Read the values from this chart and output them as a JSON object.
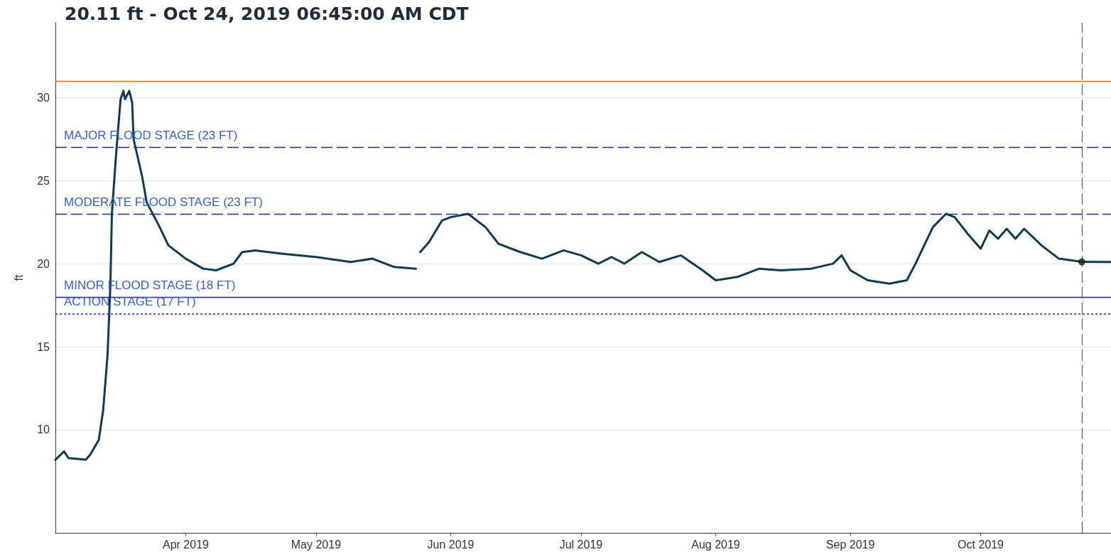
{
  "chart_data": {
    "type": "line",
    "title": "20.11 ft - Oct 24, 2019 06:45:00 AM CDT",
    "ylabel": "ft",
    "xlim": [
      "2019-03-02",
      "2019-10-31"
    ],
    "xticks": [
      {
        "value": "2019-04-01",
        "label": "Apr 2019"
      },
      {
        "value": "2019-05-01",
        "label": "May 2019"
      },
      {
        "value": "2019-06-01",
        "label": "Jun 2019"
      },
      {
        "value": "2019-07-01",
        "label": "Jul 2019"
      },
      {
        "value": "2019-08-01",
        "label": "Aug 2019"
      },
      {
        "value": "2019-09-01",
        "label": "Sep 2019"
      },
      {
        "value": "2019-10-01",
        "label": "Oct 2019"
      }
    ],
    "ylim": [
      3.8,
      34.5
    ],
    "yticks": [
      10,
      15,
      20,
      25,
      30
    ],
    "grid": "y",
    "marker": "none",
    "line_style": "solid",
    "series": [
      {
        "color": "#0d3d56",
        "x": [
          "2019-03-02",
          "2019-03-04",
          "2019-03-05",
          "2019-03-09",
          "2019-03-10",
          "2019-03-12",
          "2019-03-13",
          "2019-03-14",
          "2019-03-14T16:00",
          "2019-03-15",
          "2019-03-16",
          "2019-03-17",
          "2019-03-17T16:00",
          "2019-03-18",
          "2019-03-19",
          "2019-03-19T16:00",
          "2019-03-20",
          "2019-03-22",
          "2019-03-23",
          "2019-03-26",
          "2019-03-28",
          "2019-04-01",
          "2019-04-05",
          "2019-04-08",
          "2019-04-12",
          "2019-04-14",
          "2019-04-17",
          "2019-04-23",
          "2019-05-01",
          "2019-05-09",
          "2019-05-14",
          "2019-05-19",
          "2019-05-24",
          "2019-05-24T12:00",
          "2019-05-25",
          "2019-05-27",
          "2019-05-30",
          "2019-06-01",
          "2019-06-05",
          "2019-06-09",
          "2019-06-12",
          "2019-06-17",
          "2019-06-22",
          "2019-06-27",
          "2019-07-01",
          "2019-07-05",
          "2019-07-08",
          "2019-07-11",
          "2019-07-15",
          "2019-07-19",
          "2019-07-24",
          "2019-07-29",
          "2019-08-01",
          "2019-08-06",
          "2019-08-11",
          "2019-08-16",
          "2019-08-23",
          "2019-08-28",
          "2019-08-30",
          "2019-09-01",
          "2019-09-05",
          "2019-09-10",
          "2019-09-14",
          "2019-09-16",
          "2019-09-20",
          "2019-09-23",
          "2019-09-25",
          "2019-09-28",
          "2019-10-01",
          "2019-10-03",
          "2019-10-05",
          "2019-10-07",
          "2019-10-09",
          "2019-10-11",
          "2019-10-15",
          "2019-10-19",
          "2019-10-24T06:45",
          "2019-10-31"
        ],
        "values": [
          8.2,
          8.7,
          8.3,
          8.2,
          8.5,
          9.4,
          11.2,
          14.5,
          18.8,
          23,
          26.7,
          29.9,
          30.4,
          29.9,
          30.4,
          29.7,
          27.5,
          25.2,
          23.7,
          22.2,
          21.1,
          20.3,
          19.7,
          19.6,
          20,
          20.7,
          20.8,
          20.6,
          20.4,
          20.1,
          20.3,
          19.8,
          19.7,
          null,
          20.7,
          21.3,
          22.6,
          22.8,
          23,
          22.2,
          21.2,
          20.7,
          20.3,
          20.8,
          20.5,
          20,
          20.4,
          20,
          20.7,
          20.1,
          20.5,
          19.6,
          19,
          19.2,
          19.7,
          19.6,
          19.7,
          20,
          20.5,
          19.6,
          19,
          18.8,
          19,
          20,
          22.2,
          23,
          22.8,
          21.8,
          20.9,
          22,
          21.5,
          22.1,
          21.5,
          22.1,
          21.1,
          20.3,
          20.11,
          20.1
        ]
      },
      {
        "type": "scatter",
        "marker": "circle",
        "color": "#1a1a1a",
        "x": [
          "2019-10-24T06:45"
        ],
        "values": [
          20.11
        ]
      }
    ],
    "ref_lines": [
      {
        "axis": "y",
        "value": 31,
        "label": null,
        "color": "#ff5a36",
        "line_style": "solid"
      },
      {
        "axis": "y",
        "value": 27,
        "label": "MAJOR FLOOD STAGE (23 FT)",
        "color": "#1a1aff",
        "line_style": "dashed"
      },
      {
        "axis": "y",
        "value": 23,
        "label": "MODERATE FLOOD STAGE (23 FT)",
        "color": "#1a1aff",
        "line_style": "dashed"
      },
      {
        "axis": "y",
        "value": 18,
        "label": "MINOR FLOOD STAGE (18 FT)",
        "color": "#1a1aff",
        "line_style": "solid"
      },
      {
        "axis": "y",
        "value": 17,
        "label": "ACTION STAGE (17 FT)",
        "color": "#1a1aff",
        "line_style": "dotted"
      },
      {
        "axis": "x",
        "value": "2019-10-24T06:45",
        "label": null,
        "color": "#666666",
        "line_style": "dashed"
      }
    ]
  }
}
